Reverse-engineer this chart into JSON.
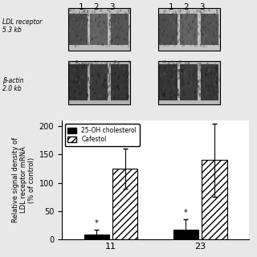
{
  "groups": [
    "11",
    "23"
  ],
  "bar_labels": [
    "25-OH cholesterol",
    "Cafestol"
  ],
  "bar_values": [
    [
      8,
      125
    ],
    [
      17,
      140
    ]
  ],
  "bar_errors": [
    [
      8,
      35
    ],
    [
      18,
      65
    ]
  ],
  "ylim": [
    0,
    210
  ],
  "yticks": [
    0,
    50,
    100,
    150,
    200
  ],
  "ylabel_line1": "Relative signal density of",
  "ylabel_line2": "LDL receptor mRNA",
  "ylabel_line3": "(% of control)",
  "background_color": "#e8e8e8",
  "plot_bg": "white",
  "bar_width": 0.28,
  "lane_labels": [
    "1",
    "2",
    "3"
  ],
  "left_labels": [
    "LDL receptor\n5.3 kb",
    "β-actin\n2.0 kb"
  ],
  "blot_bg": "#d8d8d8",
  "band_color_ldl": "#2a2a2a",
  "band_color_actin": "#1a1a1a"
}
